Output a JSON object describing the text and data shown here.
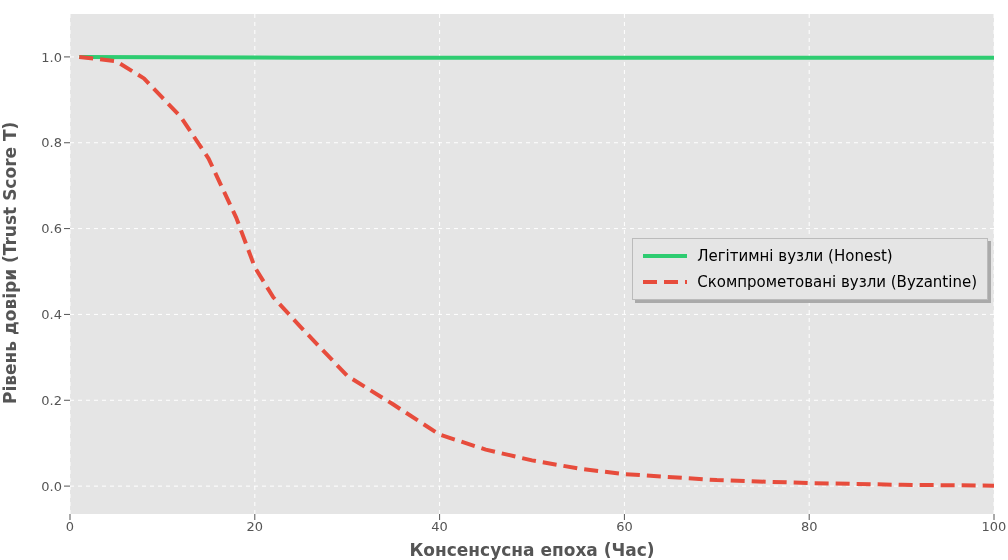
{
  "chart_data": {
    "type": "line",
    "xlabel": "Консенсусна епоха (Час)",
    "ylabel": "Рівень довіри (Trust Score T)",
    "xlim": [
      0,
      100
    ],
    "xticks": [
      0,
      20,
      40,
      60,
      80,
      100
    ],
    "ylim": [
      -0.065,
      1.1
    ],
    "yticks": [
      {
        "value": 0,
        "label": "0.0"
      },
      {
        "value": 0.2,
        "label": "0.2"
      },
      {
        "value": 0.4,
        "label": "0.4"
      },
      {
        "value": 0.6,
        "label": "0.6"
      },
      {
        "value": 0.8,
        "label": "0.8"
      },
      {
        "value": 1,
        "label": "1.0"
      }
    ],
    "grid": true,
    "legend": "right",
    "marker": "none",
    "series": [
      {
        "name": "Легітимні вузли (Honest)",
        "color": "#2ecc71",
        "line_style": "solid",
        "x": [
          1,
          25,
          50,
          75,
          100
        ],
        "values": [
          1.0,
          0.998,
          0.998,
          0.998,
          0.998
        ]
      },
      {
        "name": "Скомпрометовані вузли (Byzantine)",
        "color": "#e74c3c",
        "line_style": "dashed",
        "x": [
          1,
          5,
          8,
          10,
          12,
          15,
          18,
          20,
          22,
          25,
          30,
          35,
          40,
          45,
          50,
          55,
          60,
          70,
          80,
          90,
          100
        ],
        "values": [
          1.0,
          0.99,
          0.95,
          0.905,
          0.86,
          0.763,
          0.625,
          0.51,
          0.44,
          0.37,
          0.257,
          0.19,
          0.12,
          0.085,
          0.06,
          0.041,
          0.028,
          0.014,
          0.007,
          0.003,
          0.001
        ]
      }
    ]
  }
}
